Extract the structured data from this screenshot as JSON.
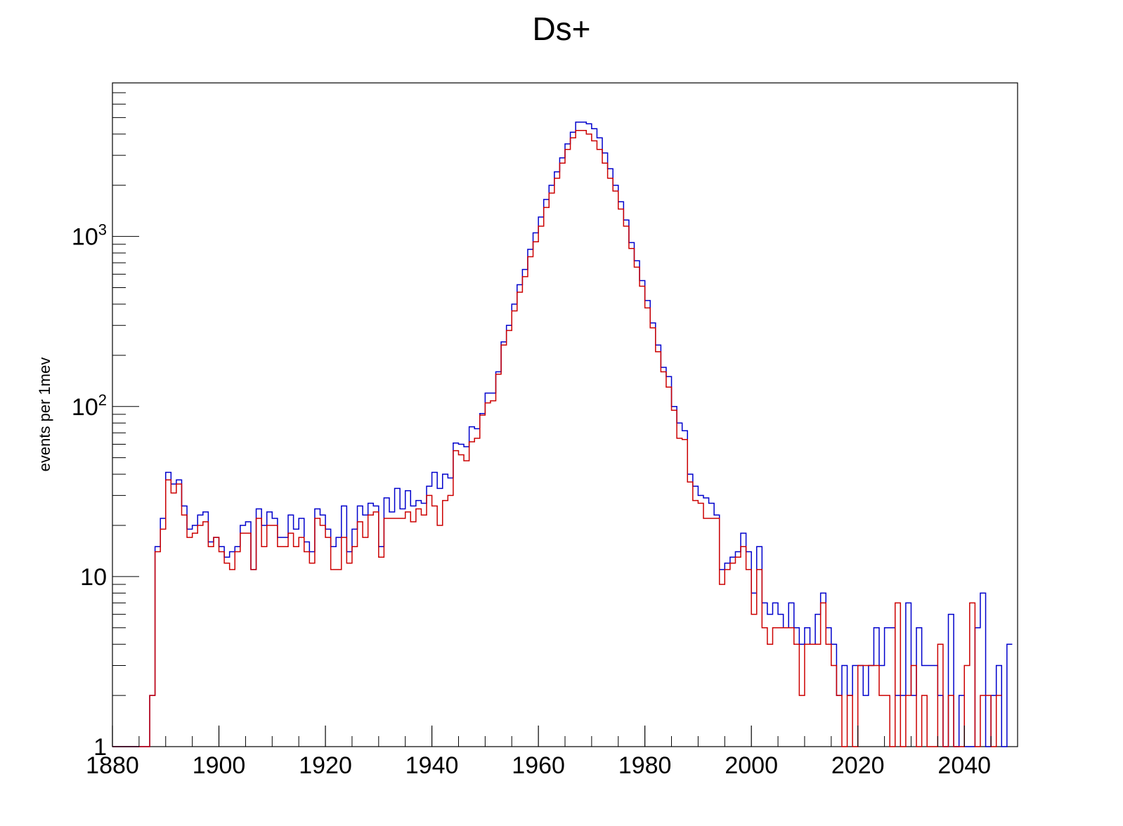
{
  "chart_data": {
    "type": "step",
    "title": "Ds+",
    "xlabel": "",
    "ylabel": "events per 1mev",
    "xlim": [
      1880,
      2050
    ],
    "ylim": [
      1,
      8000
    ],
    "yscale": "log",
    "bin_width": 1,
    "x_ticks": [
      {
        "value": 1880,
        "label": "1880"
      },
      {
        "value": 1900,
        "label": "1900"
      },
      {
        "value": 1920,
        "label": "1920"
      },
      {
        "value": 1940,
        "label": "1940"
      },
      {
        "value": 1960,
        "label": "1960"
      },
      {
        "value": 1980,
        "label": "1980"
      },
      {
        "value": 2000,
        "label": "2000"
      },
      {
        "value": 2020,
        "label": "2020"
      },
      {
        "value": 2040,
        "label": "2040"
      }
    ],
    "y_ticks": [
      {
        "value": 1,
        "base": "1",
        "exp": ""
      },
      {
        "value": 10,
        "base": "10",
        "exp": ""
      },
      {
        "value": 100,
        "base": "10",
        "exp": "2"
      },
      {
        "value": 1000,
        "base": "10",
        "exp": "3"
      }
    ],
    "grid": false,
    "series": [
      {
        "color": "#0000cc",
        "x_start": 1880,
        "values": [
          0,
          0,
          0,
          0,
          0,
          0,
          0,
          2,
          15,
          22,
          41,
          35,
          37,
          26,
          19,
          20,
          23,
          24,
          16,
          17,
          15,
          13,
          14,
          15,
          20,
          21,
          11,
          25,
          20,
          24,
          22,
          17,
          17,
          23,
          19,
          22,
          16,
          14,
          25,
          23,
          19,
          15,
          17,
          26,
          14,
          19,
          26,
          23,
          27,
          26,
          15,
          29,
          24,
          33,
          25,
          32,
          26,
          28,
          27,
          34,
          41,
          33,
          40,
          38,
          61,
          60,
          58,
          76,
          74,
          91,
          120,
          120,
          160,
          240,
          300,
          400,
          520,
          640,
          840,
          1050,
          1300,
          1650,
          2000,
          2400,
          2900,
          3500,
          4100,
          4700,
          4700,
          4600,
          4300,
          3800,
          3100,
          2500,
          2000,
          1600,
          1250,
          920,
          720,
          550,
          420,
          310,
          230,
          170,
          150,
          100,
          80,
          72,
          40,
          34,
          30,
          29,
          27,
          23,
          11,
          12,
          13,
          14,
          18,
          14,
          8,
          15,
          7,
          6,
          7,
          6,
          5,
          7,
          5,
          4,
          5,
          4,
          6,
          8,
          5,
          4,
          2,
          3,
          2,
          3,
          3,
          2,
          3,
          5,
          3,
          5,
          5,
          2,
          2,
          7,
          2,
          5,
          3,
          3,
          3,
          2,
          1,
          6,
          1,
          2,
          1,
          1,
          5,
          8,
          1,
          2,
          3,
          1,
          4
        ]
      },
      {
        "color": "#cc0000",
        "x_start": 1880,
        "values": [
          0,
          0,
          0,
          0,
          0,
          0,
          0,
          2,
          14,
          19,
          37,
          31,
          35,
          23,
          17,
          18,
          20,
          21,
          15,
          17,
          14,
          12,
          11,
          14,
          18,
          18,
          11,
          22,
          15,
          20,
          20,
          15,
          15,
          18,
          15,
          17,
          14,
          12,
          22,
          20,
          17,
          11,
          11,
          17,
          12,
          15,
          21,
          17,
          23,
          24,
          13,
          22,
          22,
          22,
          22,
          24,
          21,
          25,
          23,
          30,
          26,
          20,
          28,
          30,
          55,
          52,
          48,
          62,
          65,
          89,
          105,
          108,
          155,
          230,
          280,
          365,
          470,
          580,
          760,
          930,
          1150,
          1480,
          1800,
          2200,
          2700,
          3250,
          3800,
          4200,
          4200,
          4000,
          3650,
          3250,
          2700,
          2200,
          1850,
          1450,
          1150,
          850,
          660,
          510,
          380,
          290,
          210,
          160,
          130,
          95,
          65,
          64,
          36,
          28,
          27,
          22,
          22,
          22,
          9,
          11,
          12,
          13,
          15,
          11,
          6,
          11,
          5,
          4,
          5,
          5,
          5,
          5,
          4,
          2,
          4,
          4,
          4,
          7,
          4,
          3,
          2,
          1,
          2,
          1,
          3,
          3,
          3,
          3,
          2,
          2,
          1,
          7,
          1,
          2,
          3,
          1,
          2,
          1,
          1,
          4,
          1,
          2,
          1,
          1,
          3,
          7,
          1,
          2,
          2,
          1,
          2
        ]
      }
    ]
  }
}
